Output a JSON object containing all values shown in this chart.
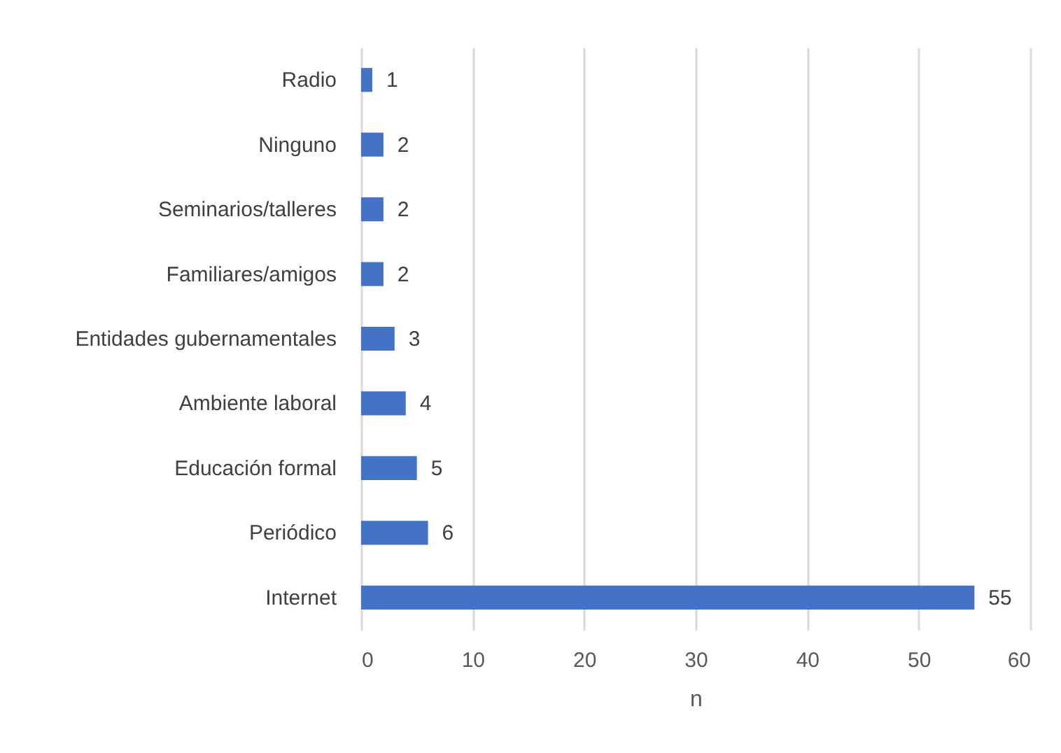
{
  "chart_data": {
    "type": "bar",
    "orientation": "horizontal",
    "xlabel": "n",
    "categories": [
      "Radio",
      "Ninguno",
      "Seminarios/talleres",
      "Familiares/amigos",
      "Entidades gubernamentales",
      "Ambiente laboral",
      "Educación formal",
      "Periódico",
      "Internet"
    ],
    "values": [
      1,
      2,
      2,
      2,
      3,
      4,
      5,
      6,
      55
    ],
    "color": "#4472c4",
    "xlim": [
      0,
      60
    ],
    "xticks": [
      0,
      10,
      20,
      30,
      40,
      50,
      60
    ],
    "grid": "x",
    "data_labels": true
  }
}
